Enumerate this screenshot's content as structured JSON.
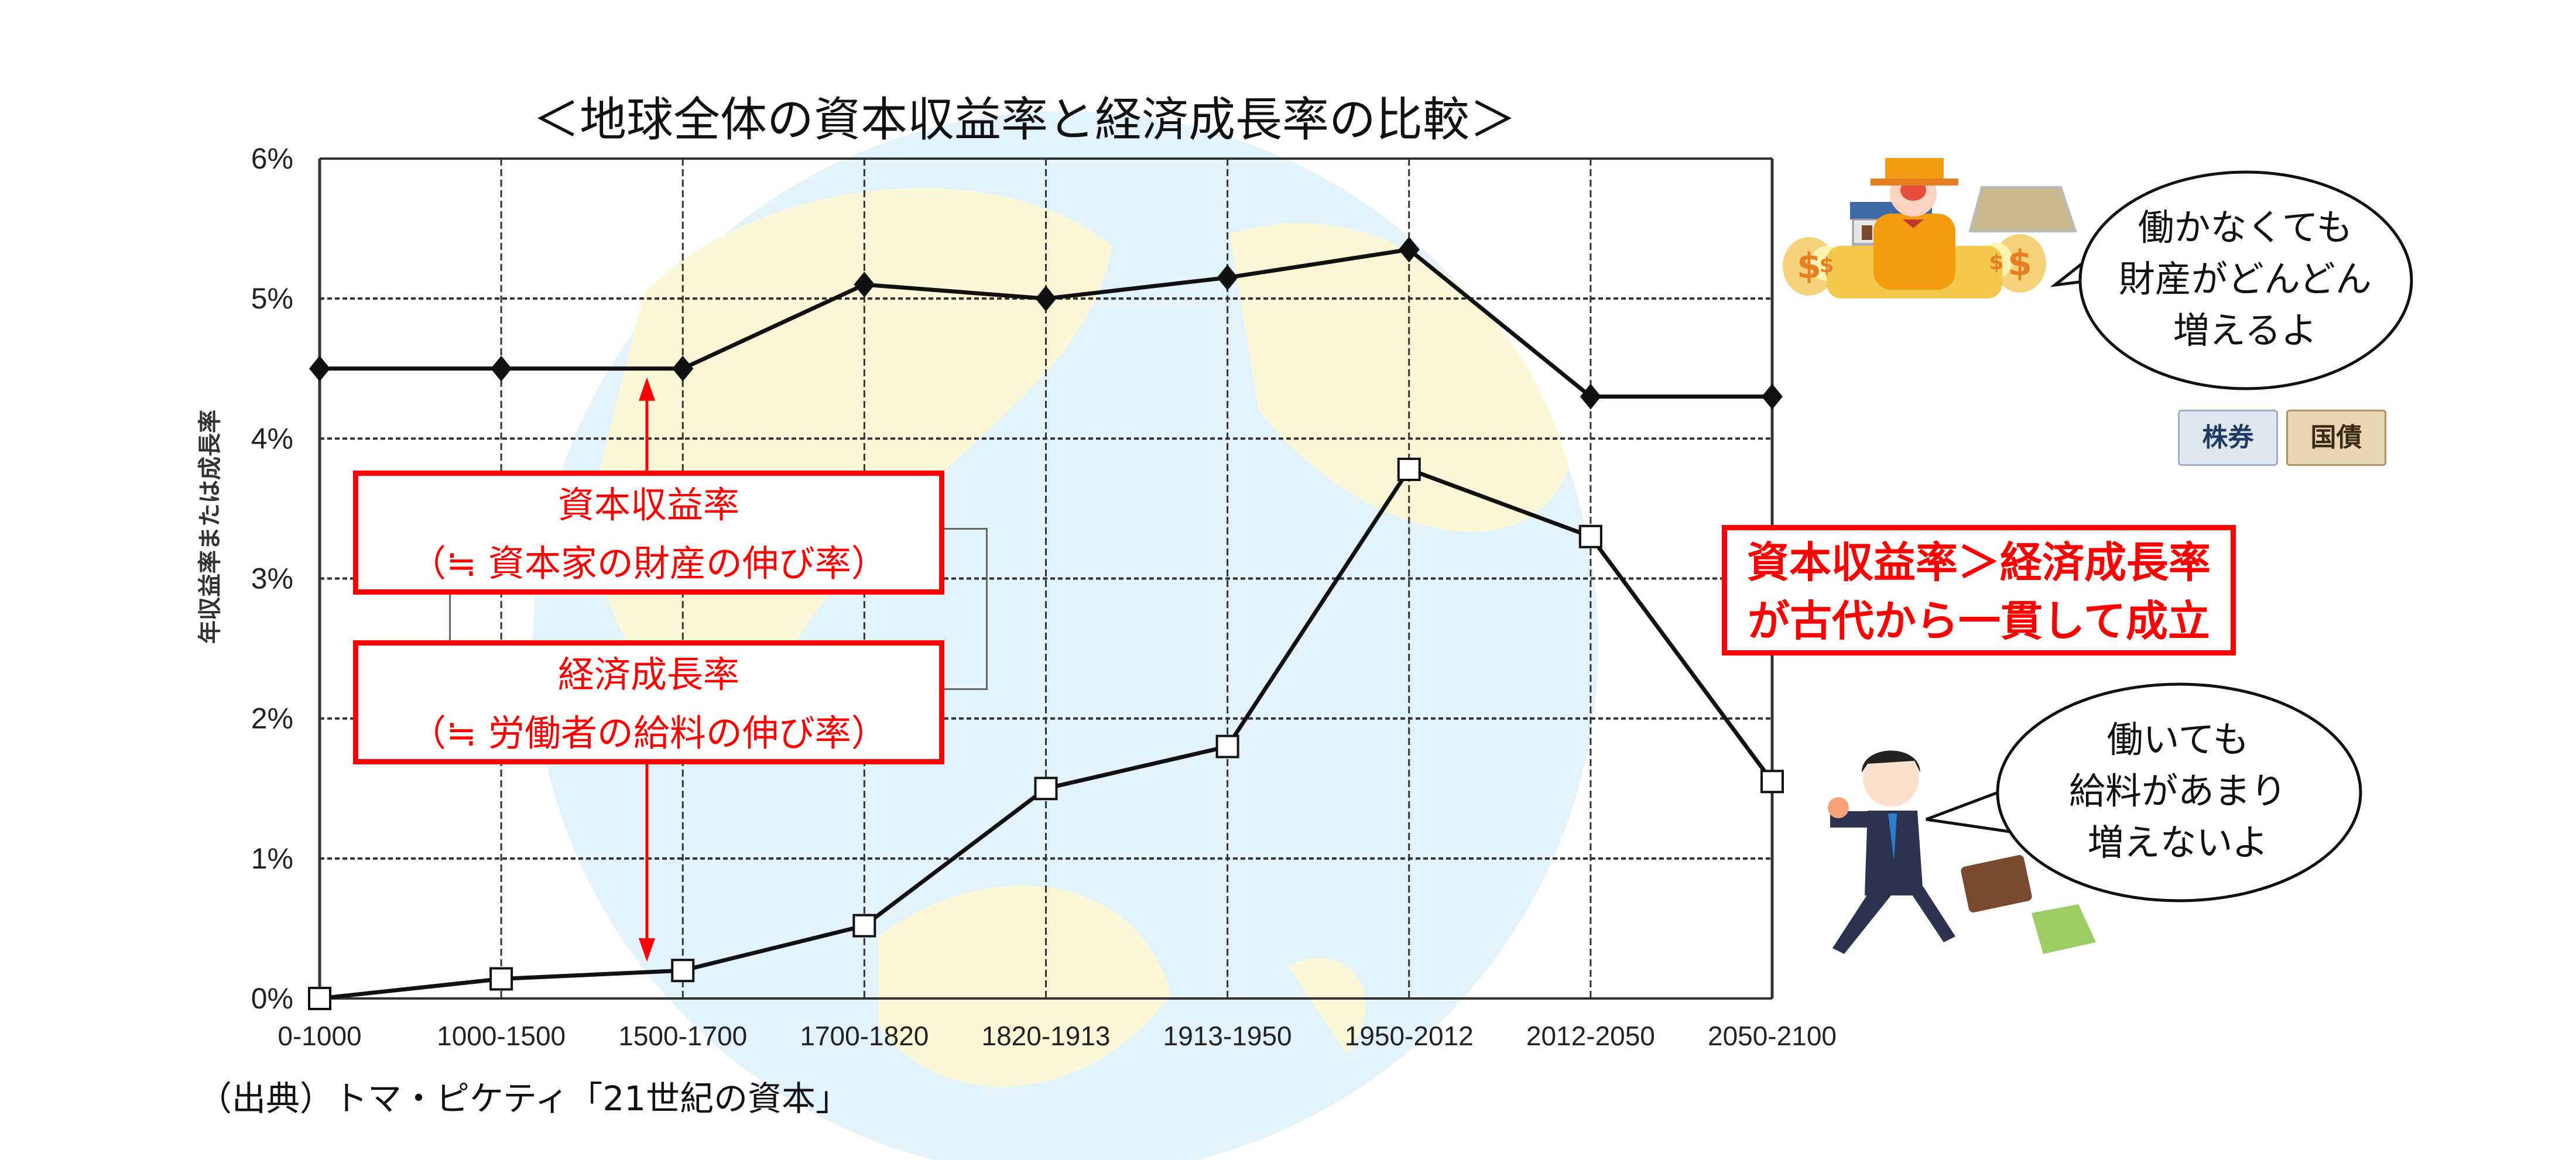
{
  "chart_data": {
    "type": "line",
    "title": "＜地球全体の資本収益率と経済成長率の比較＞",
    "xlabel": "",
    "ylabel": "年収益率または成長率",
    "categories": [
      "0-1000",
      "1000-1500",
      "1500-1700",
      "1700-1820",
      "1820-1913",
      "1913-1950",
      "1950-2012",
      "2012-2050",
      "2050-2100"
    ],
    "ylim": [
      0,
      6
    ],
    "yticks": [
      "0%",
      "1%",
      "2%",
      "3%",
      "4%",
      "5%",
      "6%"
    ],
    "grid": true,
    "series": [
      {
        "name": "資本収益率",
        "marker": "diamond-filled",
        "values": [
          4.5,
          4.5,
          4.5,
          5.1,
          5.0,
          5.15,
          5.35,
          4.3,
          4.3
        ]
      },
      {
        "name": "経済成長率",
        "marker": "square-open",
        "values": [
          0.0,
          0.14,
          0.2,
          0.52,
          1.5,
          1.8,
          3.78,
          3.3,
          1.55
        ]
      }
    ],
    "annotations": {
      "capital_box": {
        "line1": "資本収益率",
        "line2": "（≒ 資本家の財産の伸び率）"
      },
      "growth_box": {
        "line1": "経済成長率",
        "line2": "（≒ 労働者の給料の伸び率）"
      },
      "conclusion": {
        "line1": "資本収益率＞経済成長率",
        "line2": "が古代から一貫して成立"
      }
    }
  },
  "source": "（出典）トマ・ピケティ「21世紀の資本」",
  "rich_bubble": {
    "line1": "働かなくても",
    "line2": "財産がどんどん",
    "line3": "増えるよ"
  },
  "worker_bubble": {
    "line1": "働いても",
    "line2": "給料があまり",
    "line3": "増えないよ"
  },
  "stamps": {
    "stock": "株券",
    "bond": "国債"
  },
  "colors": {
    "accent": "#ff0000",
    "line": "#111111",
    "globe": "#e3f3fb",
    "land": "#fbf8d8"
  }
}
